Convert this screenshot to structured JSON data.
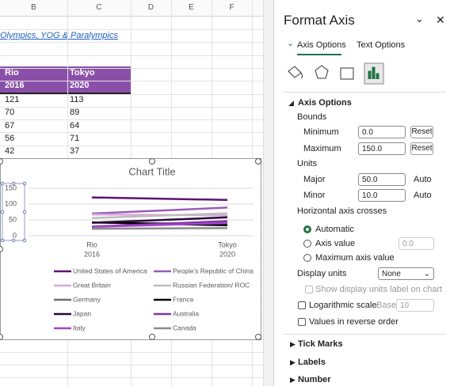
{
  "sheet": {
    "columns": [
      "B",
      "C",
      "D",
      "E",
      "F"
    ],
    "link": "Olympics, YOG & Paralympics",
    "table": {
      "header": [
        [
          "Rio",
          "2016"
        ],
        [
          "Tokyo",
          "2020"
        ]
      ],
      "rows": [
        [
          121,
          113
        ],
        [
          70,
          89
        ],
        [
          67,
          64
        ],
        [
          56,
          71
        ],
        [
          42,
          37
        ]
      ]
    }
  },
  "chart": {
    "type": "line",
    "title": "Chart Title",
    "categories": [
      [
        "Rio",
        "2016"
      ],
      [
        "Tokyo",
        "2020"
      ]
    ],
    "ylim": [
      0,
      150
    ],
    "yticks": [
      0,
      50,
      100,
      150
    ],
    "grid": true,
    "series": [
      {
        "name": "United States of America",
        "color": "#5c1470",
        "values": [
          121,
          113
        ]
      },
      {
        "name": "People's Republic of China",
        "color": "#9b5cb8",
        "values": [
          70,
          89
        ]
      },
      {
        "name": "Great Britain",
        "color": "#d8a8dc",
        "values": [
          67,
          64
        ]
      },
      {
        "name": "Russian Federation/ ROC",
        "color": "#bdbdbd",
        "values": [
          56,
          71
        ]
      },
      {
        "name": "Germany",
        "color": "#6e6e6e",
        "values": [
          42,
          37
        ]
      },
      {
        "name": "France",
        "color": "#000000",
        "values": [
          42,
          33
        ]
      },
      {
        "name": "Japan",
        "color": "#2a0838",
        "values": [
          41,
          58
        ]
      },
      {
        "name": "Australia",
        "color": "#7a35a8",
        "values": [
          29,
          46
        ]
      },
      {
        "name": "Italy",
        "color": "#a544c8",
        "values": [
          28,
          40
        ]
      },
      {
        "name": "Canada",
        "color": "#8a8a8a",
        "values": [
          22,
          24
        ]
      }
    ]
  },
  "panel": {
    "title": "Format Axis",
    "tabs": [
      "Axis Options",
      "Text Options"
    ],
    "section": "Axis Options",
    "bounds": {
      "label": "Bounds",
      "minimum": {
        "label": "Minimum",
        "value": "0.0",
        "button": "Reset"
      },
      "maximum": {
        "label": "Maximum",
        "value": "150.0",
        "button": "Reset"
      }
    },
    "units": {
      "label": "Units",
      "major": {
        "label": "Major",
        "value": "50.0",
        "button": "Auto"
      },
      "minor": {
        "label": "Minor",
        "value": "10.0",
        "button": "Auto"
      }
    },
    "crosses": {
      "label": "Horizontal axis crosses",
      "options": [
        "Automatic",
        "Axis value",
        "Maximum axis value"
      ],
      "axis_value": "0.0"
    },
    "display_units": {
      "label": "Display units",
      "value": "None",
      "show_label": "Show display units label on chart"
    },
    "log_scale": {
      "label": "Logarithmic scale",
      "base_label": "Base",
      "base": "10"
    },
    "reverse": "Values in reverse order",
    "sections": [
      "Tick Marks",
      "Labels",
      "Number"
    ]
  }
}
